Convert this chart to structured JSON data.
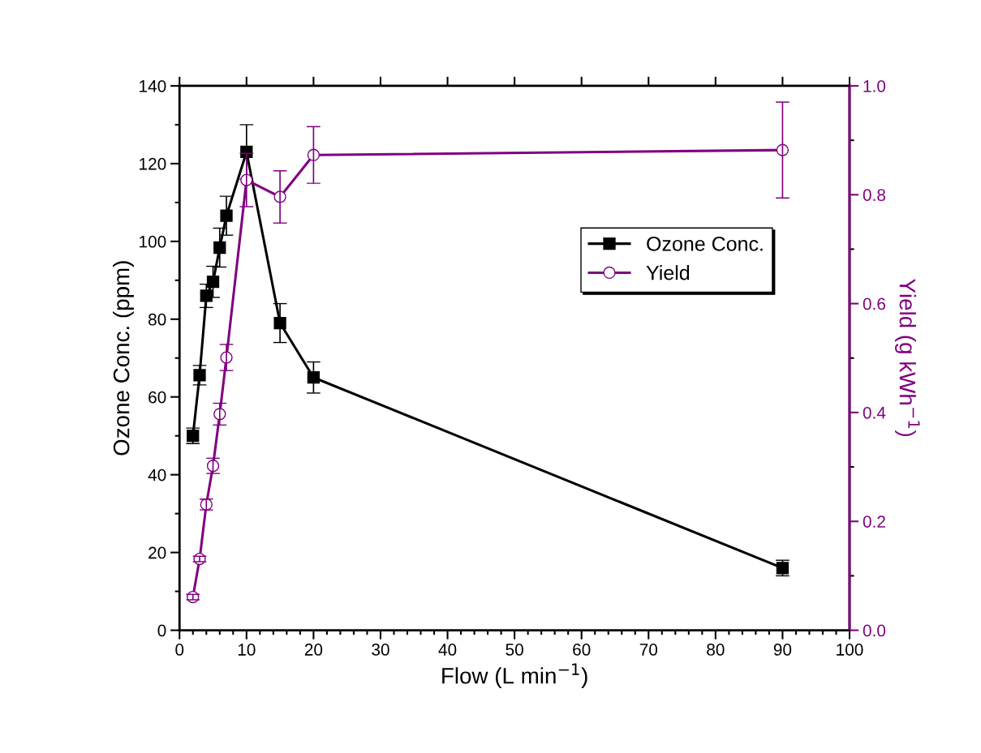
{
  "chart_data": {
    "type": "line",
    "xlabel": "Flow (L min$^{−1}$)",
    "ylabel": "Ozone Conc. (ppm)",
    "y2label": "Yield (g kWh$^{−1}$)",
    "xlim": [
      0,
      100
    ],
    "xticks": [
      0,
      10,
      20,
      30,
      40,
      50,
      60,
      70,
      80,
      90,
      100
    ],
    "ylim": [
      0,
      140
    ],
    "yticks": [
      0,
      20,
      40,
      60,
      80,
      100,
      120,
      140
    ],
    "y2lim": [
      0,
      1.0
    ],
    "y2ticks": [
      {
        "value": 0,
        "label": "0.0"
      },
      0.2,
      0.4,
      0.6,
      0.8,
      {
        "value": 1,
        "label": "1.0"
      }
    ],
    "legend": "right",
    "grid": false,
    "series": [
      {
        "name": "Ozone Conc.",
        "color": "#000000",
        "marker": "square",
        "x": [
          2,
          3,
          4,
          5,
          6,
          7,
          10,
          15,
          20,
          90
        ],
        "values": [
          50,
          65.6,
          86,
          89.6,
          98.4,
          106.6,
          123,
          79,
          65,
          16
        ],
        "errors": [
          2,
          2.5,
          3,
          4,
          5,
          5,
          7,
          5,
          4,
          2
        ]
      },
      {
        "name": "Yield",
        "color": "#800080",
        "marker": "circle",
        "axis": "y2",
        "x": [
          2,
          3,
          4,
          5,
          6,
          7,
          10,
          15,
          20,
          90
        ],
        "values": [
          0.061,
          0.131,
          0.231,
          0.302,
          0.397,
          0.501,
          0.827,
          0.796,
          0.873,
          0.882
        ],
        "errors": [
          0.005,
          0.005,
          0.01,
          0.014,
          0.02,
          0.024,
          0.049,
          0.048,
          0.052,
          0.088
        ]
      }
    ]
  }
}
